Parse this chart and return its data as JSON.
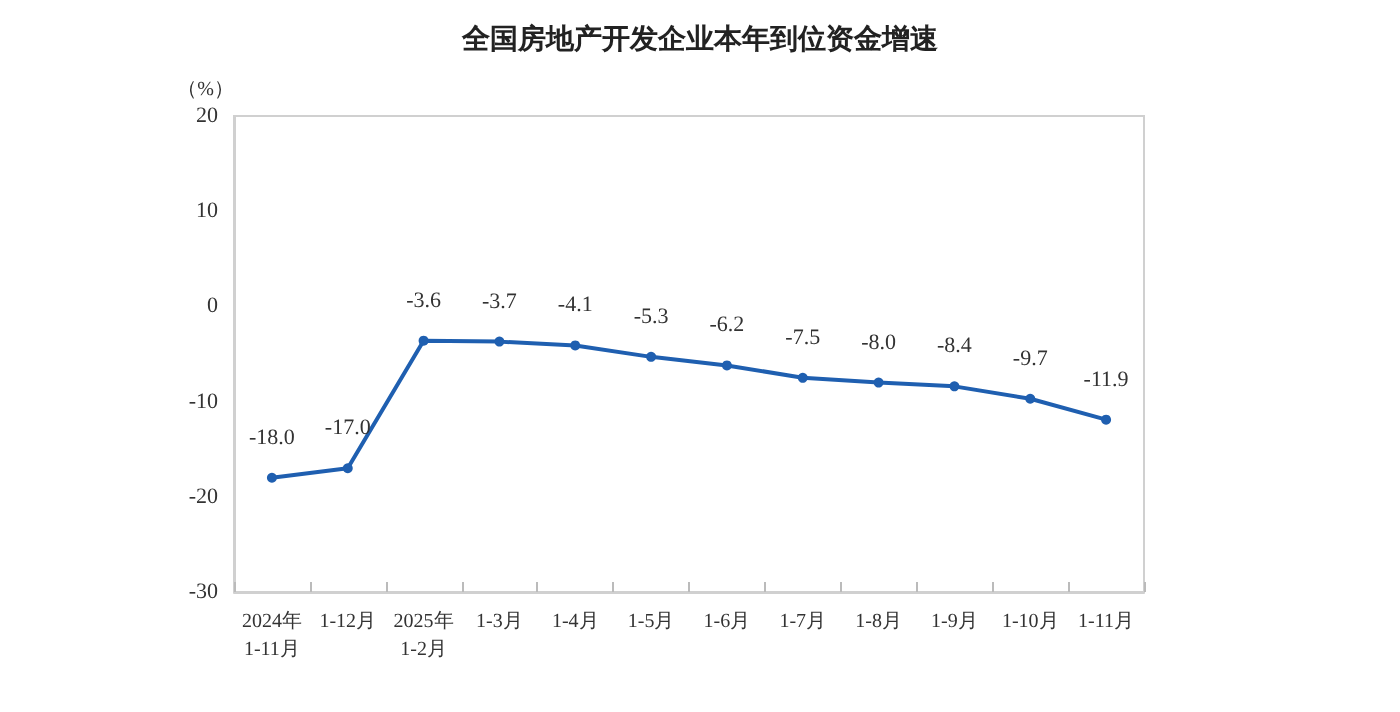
{
  "chart_data": {
    "type": "line",
    "title": "全国房地产开发企业本年到位资金增速",
    "ylabel": "（%）",
    "categories": [
      "2024年\n1-11月",
      "1-12月",
      "2025年\n1-2月",
      "1-3月",
      "1-4月",
      "1-5月",
      "1-6月",
      "1-7月",
      "1-8月",
      "1-9月",
      "1-10月",
      "1-11月"
    ],
    "series": [
      {
        "color": "#1f5fb0",
        "values": [
          -18.0,
          -17.0,
          -3.6,
          -3.7,
          -4.1,
          -5.3,
          -6.2,
          -7.5,
          -8.0,
          -8.4,
          -9.7,
          -11.9
        ],
        "value_labels": [
          "-18.0",
          "-17.0",
          "-3.6",
          "-3.7",
          "-4.1",
          "-5.3",
          "-6.2",
          "-7.5",
          "-8.0",
          "-8.4",
          "-9.7",
          "-11.9"
        ]
      }
    ],
    "ylim": [
      -30,
      20
    ],
    "yticks": [
      -30,
      -20,
      -10,
      0,
      10,
      20
    ],
    "marker": "circle",
    "line_style": "solid"
  }
}
